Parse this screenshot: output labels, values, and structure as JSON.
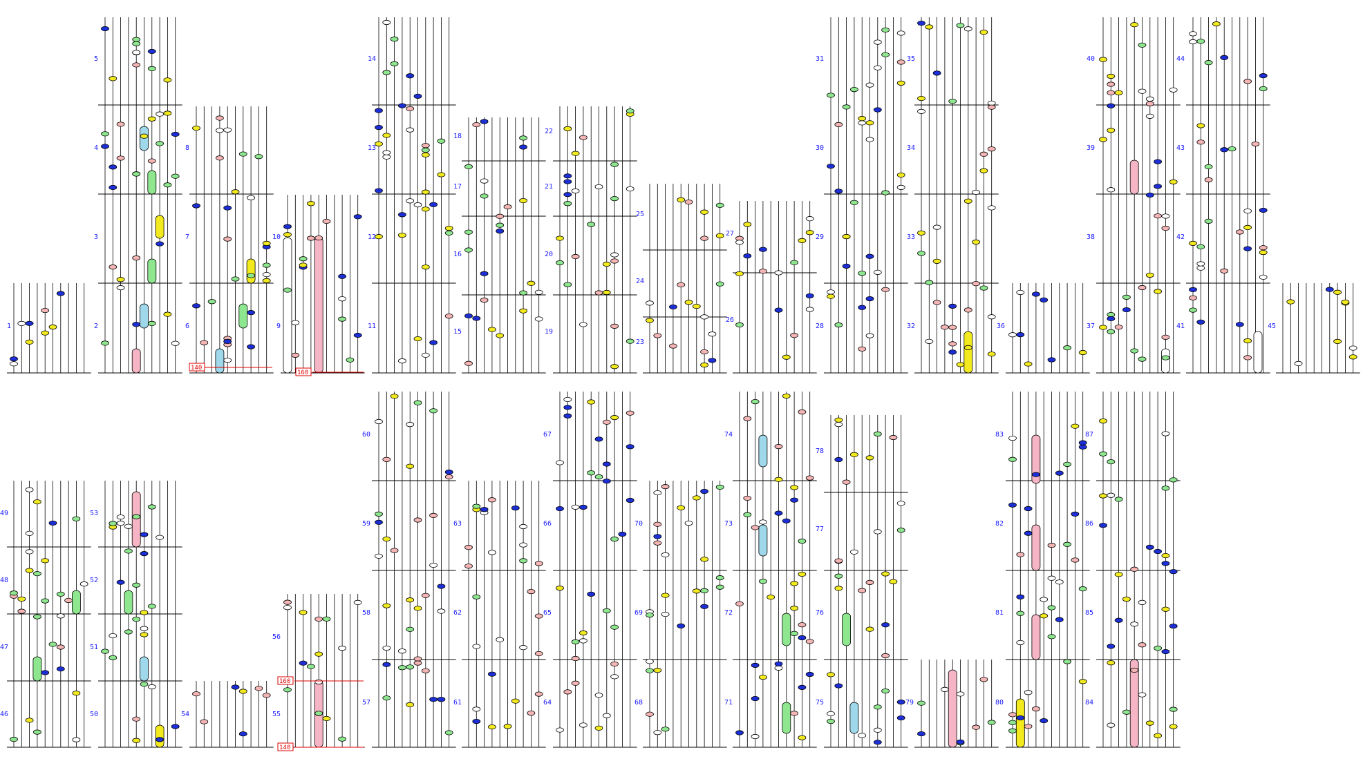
{
  "colors": {
    "string": "#000000",
    "barline": "#000000",
    "bar_number": "#1a1aff",
    "tag": "#e00000",
    "note_yellow": "#f2ea1e",
    "note_green": "#8ee68e",
    "note_blue": "#1c2fd6",
    "note_pink": "#f5b5b5",
    "note_white": "#ffffff",
    "sustain_cyan": "#9fd8ea",
    "sustain_green": "#8ee68e",
    "sustain_yellow": "#f2ea1e",
    "sustain_pink": "#f5b5c4",
    "sustain_white": "#ffffff"
  },
  "bar_numbers": [
    "1",
    "2",
    "3",
    "4",
    "5",
    "6",
    "7",
    "8",
    "9",
    "10",
    "11",
    "12",
    "13",
    "14",
    "15",
    "16",
    "17",
    "18",
    "19",
    "20",
    "21",
    "22",
    "23",
    "24",
    "25",
    "26",
    "27",
    "28",
    "29",
    "30",
    "31",
    "32",
    "33",
    "34",
    "35",
    "36",
    "37",
    "38",
    "39",
    "40",
    "41",
    "42",
    "43",
    "44",
    "45",
    "46",
    "47",
    "48",
    "49",
    "50",
    "51",
    "52",
    "53",
    "54",
    "55",
    "56",
    "57",
    "58",
    "59",
    "60",
    "61",
    "62",
    "63",
    "64",
    "65",
    "66",
    "67",
    "68",
    "69",
    "70",
    "71",
    "72",
    "73",
    "74",
    "75",
    "76",
    "77",
    "78",
    "79",
    "80",
    "81",
    "82",
    "83",
    "84",
    "85",
    "86",
    "87"
  ],
  "tags": [
    "140",
    "160",
    "160",
    "140"
  ]
}
